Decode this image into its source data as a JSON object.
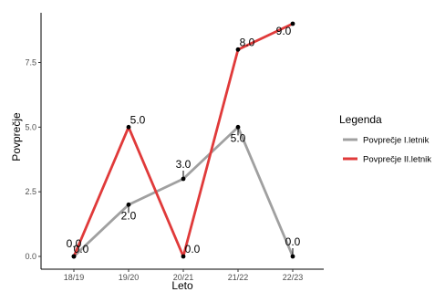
{
  "chart_data": {
    "type": "line",
    "categories": [
      "18/19",
      "19/20",
      "20/21",
      "21/22",
      "22/23"
    ],
    "series": [
      {
        "name": "Povprečje I.letnik",
        "values": [
          0,
          2,
          3,
          5,
          0
        ],
        "color": "#a0a0a0",
        "labels": [
          "0.0",
          "2.0",
          "3.0",
          "5.0",
          "0.0"
        ]
      },
      {
        "name": "Povprečje II.letnik",
        "values": [
          0,
          5,
          0,
          8,
          9
        ],
        "color": "#e03a3a",
        "labels": [
          "0.0",
          "5.0",
          "0.0",
          "8.0",
          "9.0"
        ]
      }
    ],
    "xlabel": "Leto",
    "ylabel": "Povprečje",
    "ylim": [
      0,
      9
    ],
    "yticks": [
      0,
      2.5,
      5,
      7.5
    ],
    "ytick_labels": [
      "0.0",
      "2.5",
      "5.0",
      "7.5"
    ],
    "legend_title": "Legenda",
    "legend_position": "right",
    "grid": false
  }
}
